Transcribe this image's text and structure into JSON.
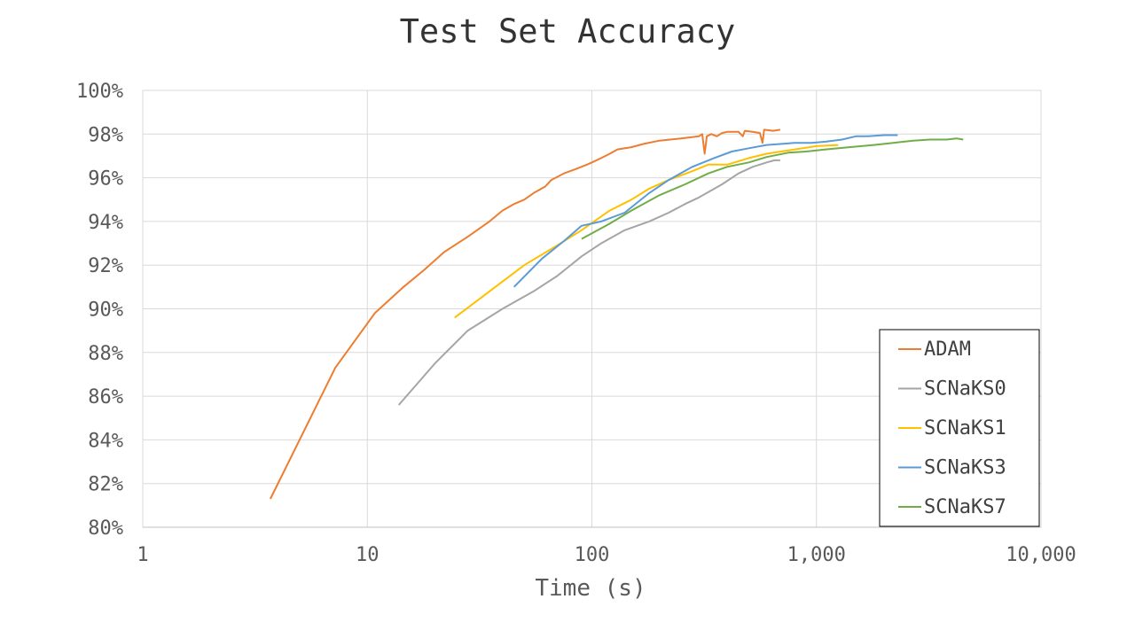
{
  "chart_data": {
    "type": "line",
    "title": "Test Set Accuracy",
    "xlabel": "Time (s)",
    "ylabel": "",
    "x_scale": "log",
    "xlim": [
      1,
      10000
    ],
    "ylim": [
      80,
      100
    ],
    "x_ticks": [
      "1",
      "10",
      "100",
      "1,000",
      "10,000"
    ],
    "y_ticks": [
      "80%",
      "82%",
      "84%",
      "86%",
      "88%",
      "90%",
      "92%",
      "94%",
      "96%",
      "98%",
      "100%"
    ],
    "grid": true,
    "legend_position": "bottom-right",
    "series": [
      {
        "name": "ADAM",
        "color": "#ED7D31",
        "points": [
          [
            3.7,
            81.3
          ],
          [
            7.2,
            87.3
          ],
          [
            10.8,
            89.8
          ],
          [
            14.5,
            91.0
          ],
          [
            18,
            91.8
          ],
          [
            22,
            92.6
          ],
          [
            28,
            93.3
          ],
          [
            35,
            94.0
          ],
          [
            40,
            94.5
          ],
          [
            45,
            94.8
          ],
          [
            50,
            95.0
          ],
          [
            55,
            95.3
          ],
          [
            62,
            95.6
          ],
          [
            66,
            95.9
          ],
          [
            75,
            96.2
          ],
          [
            85,
            96.4
          ],
          [
            95,
            96.6
          ],
          [
            100,
            96.7
          ],
          [
            110,
            96.9
          ],
          [
            120,
            97.1
          ],
          [
            130,
            97.3
          ],
          [
            150,
            97.4
          ],
          [
            170,
            97.55
          ],
          [
            200,
            97.7
          ],
          [
            250,
            97.8
          ],
          [
            300,
            97.9
          ],
          [
            310,
            98.0
          ],
          [
            318,
            97.1
          ],
          [
            325,
            97.9
          ],
          [
            340,
            98.0
          ],
          [
            360,
            97.9
          ],
          [
            380,
            98.05
          ],
          [
            400,
            98.1
          ],
          [
            450,
            98.1
          ],
          [
            470,
            97.9
          ],
          [
            480,
            98.15
          ],
          [
            520,
            98.1
          ],
          [
            560,
            98.05
          ],
          [
            575,
            97.6
          ],
          [
            585,
            98.2
          ],
          [
            640,
            98.15
          ],
          [
            690,
            98.2
          ]
        ]
      },
      {
        "name": "SCNaKS0",
        "color": "#A5A5A5",
        "points": [
          [
            13.8,
            85.6
          ],
          [
            20,
            87.5
          ],
          [
            28,
            89.0
          ],
          [
            40,
            90.0
          ],
          [
            55,
            90.8
          ],
          [
            70,
            91.5
          ],
          [
            90,
            92.4
          ],
          [
            110,
            93.0
          ],
          [
            140,
            93.6
          ],
          [
            180,
            94.0
          ],
          [
            220,
            94.4
          ],
          [
            260,
            94.8
          ],
          [
            300,
            95.1
          ],
          [
            380,
            95.7
          ],
          [
            450,
            96.2
          ],
          [
            520,
            96.5
          ],
          [
            600,
            96.7
          ],
          [
            650,
            96.8
          ],
          [
            690,
            96.8
          ]
        ]
      },
      {
        "name": "SCNaKS1",
        "color": "#FFC000",
        "points": [
          [
            24.5,
            89.6
          ],
          [
            35,
            90.8
          ],
          [
            50,
            92.0
          ],
          [
            70,
            92.9
          ],
          [
            90,
            93.6
          ],
          [
            120,
            94.5
          ],
          [
            150,
            95.0
          ],
          [
            180,
            95.5
          ],
          [
            220,
            95.9
          ],
          [
            280,
            96.3
          ],
          [
            330,
            96.6
          ],
          [
            400,
            96.6
          ],
          [
            500,
            96.9
          ],
          [
            600,
            97.1
          ],
          [
            800,
            97.3
          ],
          [
            1000,
            97.45
          ],
          [
            1250,
            97.5
          ]
        ]
      },
      {
        "name": "SCNaKS3",
        "color": "#5B9BD5",
        "points": [
          [
            45,
            91.0
          ],
          [
            60,
            92.3
          ],
          [
            75,
            93.1
          ],
          [
            90,
            93.8
          ],
          [
            110,
            94.0
          ],
          [
            140,
            94.4
          ],
          [
            180,
            95.3
          ],
          [
            220,
            95.9
          ],
          [
            280,
            96.5
          ],
          [
            350,
            96.9
          ],
          [
            420,
            97.2
          ],
          [
            500,
            97.35
          ],
          [
            600,
            97.5
          ],
          [
            700,
            97.55
          ],
          [
            800,
            97.6
          ],
          [
            950,
            97.6
          ],
          [
            1100,
            97.65
          ],
          [
            1300,
            97.75
          ],
          [
            1500,
            97.9
          ],
          [
            1700,
            97.9
          ],
          [
            2000,
            97.95
          ],
          [
            2300,
            97.95
          ]
        ]
      },
      {
        "name": "SCNaKS7",
        "color": "#70AD47",
        "points": [
          [
            90,
            93.2
          ],
          [
            120,
            93.9
          ],
          [
            150,
            94.5
          ],
          [
            200,
            95.2
          ],
          [
            260,
            95.7
          ],
          [
            330,
            96.2
          ],
          [
            400,
            96.5
          ],
          [
            500,
            96.7
          ],
          [
            600,
            96.95
          ],
          [
            750,
            97.15
          ],
          [
            900,
            97.2
          ],
          [
            1100,
            97.3
          ],
          [
            1400,
            97.4
          ],
          [
            1800,
            97.5
          ],
          [
            2200,
            97.6
          ],
          [
            2700,
            97.7
          ],
          [
            3200,
            97.75
          ],
          [
            3800,
            97.75
          ],
          [
            4200,
            97.8
          ],
          [
            4500,
            97.75
          ]
        ]
      }
    ]
  }
}
